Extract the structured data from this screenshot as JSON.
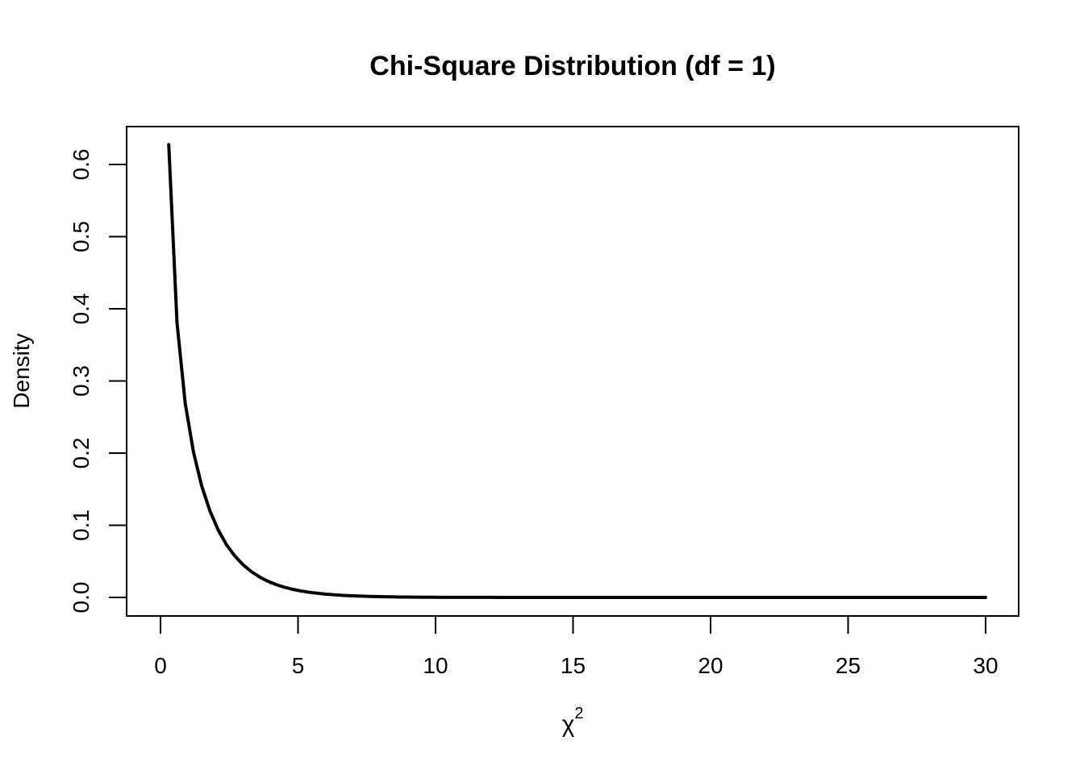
{
  "chart_data": {
    "type": "line",
    "title": "Chi-Square Distribution (df = 1)",
    "xlabel_base": "χ",
    "xlabel_sup": "2",
    "ylabel": "Density",
    "xlim": [
      0,
      30
    ],
    "ylim": [
      0,
      0.6
    ],
    "x_ticks": [
      0,
      5,
      10,
      15,
      20,
      25,
      30
    ],
    "x_tick_labels": [
      "0",
      "5",
      "10",
      "15",
      "20",
      "25",
      "30"
    ],
    "y_ticks": [
      0.0,
      0.1,
      0.2,
      0.3,
      0.4,
      0.5,
      0.6
    ],
    "y_tick_labels": [
      "0.0",
      "0.1",
      "0.2",
      "0.3",
      "0.4",
      "0.5",
      "0.6"
    ],
    "grid": false,
    "line_color": "#000000",
    "series": [
      {
        "x": [
          0.3,
          0.6,
          0.9,
          1.2,
          1.5,
          1.8,
          2.1,
          2.4,
          2.7,
          3.0,
          3.3,
          3.6,
          3.9,
          4.2,
          4.5,
          4.8,
          5.1,
          5.4,
          5.7,
          6.0,
          6.3,
          6.6,
          6.9,
          7.2,
          7.5,
          7.8,
          8.1,
          8.4,
          8.7,
          9.0,
          9.3,
          9.6,
          9.9,
          10.2,
          10.5,
          10.8,
          11.1,
          11.4,
          11.7,
          12.0,
          12.3,
          12.6,
          12.9,
          13.2,
          13.5,
          13.8,
          14.1,
          14.4,
          14.7,
          15.0,
          15.3,
          15.6,
          15.9,
          16.2,
          16.5,
          16.8,
          17.1,
          17.4,
          17.7,
          18.0,
          18.3,
          18.6,
          18.9,
          19.2,
          19.5,
          19.8,
          20.1,
          20.4,
          20.7,
          21.0,
          21.3,
          21.6,
          21.9,
          22.2,
          22.5,
          22.8,
          23.1,
          23.4,
          23.7,
          24.0,
          24.3,
          24.6,
          24.9,
          25.2,
          25.5,
          25.8,
          26.1,
          26.4,
          26.7,
          27.0,
          27.3,
          27.6,
          27.9,
          28.2,
          28.5,
          28.8,
          29.1,
          29.4,
          29.7,
          30.0
        ],
        "y": [
          0.6275,
          0.3807,
          0.2688,
          0.2012,
          0.1542,
          0.1196,
          0.0933,
          0.0731,
          0.0575,
          0.0454,
          0.0359,
          0.0284,
          0.0225,
          0.0179,
          0.0142,
          0.0113,
          0.009,
          0.0072,
          0.0058,
          0.0046,
          0.0037,
          0.0029,
          0.0024,
          0.0019,
          0.0015,
          0.0012,
          0.001,
          0.0008,
          0.0006,
          0.0005,
          0.0004,
          0.0003,
          0.0003,
          0.0002,
          0.0002,
          0.0001,
          0.0001,
          0.0001,
          0.0001,
          0.0001,
          0.0,
          0.0,
          0.0,
          0.0,
          0.0,
          0.0,
          0.0,
          0.0,
          0.0,
          0.0,
          0.0,
          0.0,
          0.0,
          0.0,
          0.0,
          0.0,
          0.0,
          0.0,
          0.0,
          0.0,
          0.0,
          0.0,
          0.0,
          0.0,
          0.0,
          0.0,
          0.0,
          0.0,
          0.0,
          0.0,
          0.0,
          0.0,
          0.0,
          0.0,
          0.0,
          0.0,
          0.0,
          0.0,
          0.0,
          0.0,
          0.0,
          0.0,
          0.0,
          0.0,
          0.0,
          0.0,
          0.0,
          0.0,
          0.0,
          0.0,
          0.0,
          0.0,
          0.0,
          0.0,
          0.0,
          0.0,
          0.0,
          0.0,
          0.0,
          0.0
        ]
      }
    ]
  }
}
